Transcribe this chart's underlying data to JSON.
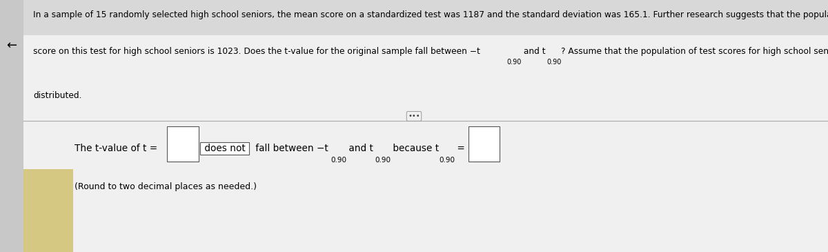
{
  "outer_bg_color": "#c8c8c8",
  "main_panel_color": "#f0f0f0",
  "left_strip_color": "#c8c8c8",
  "yellow_rect_color": "#d4c882",
  "separator_color": "#aaaaaa",
  "text_color": "#000000",
  "para_line1": "In a sample of 15 randomly selected high school seniors, the mean score on a standardized test was 1187 and the standard deviation was 165.1. Further research suggests that the population mean",
  "para_line2": "score on this test for high school seniors is 1023. Does the t-value for the original sample fall between −t",
  "para_line2b": "0.90",
  "para_line2c": " and t",
  "para_line2d": "0.90",
  "para_line2e": "? Assume that the population of test scores for high school seniors is normally",
  "para_line3": "distributed.",
  "dots_text": "•••",
  "answer_prefix": "The t-value of t = ",
  "answer_doesnot": " does not ",
  "answer_mid": " fall between −t",
  "sub1": "0.90",
  "answer_and": " and t",
  "sub2": "0.90",
  "answer_because": " because t",
  "sub3": "0.90",
  "answer_eq": " = ",
  "answer_note": "(Round to two decimal places as needed.)",
  "arrow_text": "←",
  "para_fontsize": 8.8,
  "answer_fontsize": 9.8,
  "sub_fontsize": 7.0,
  "note_fontsize": 9.0
}
